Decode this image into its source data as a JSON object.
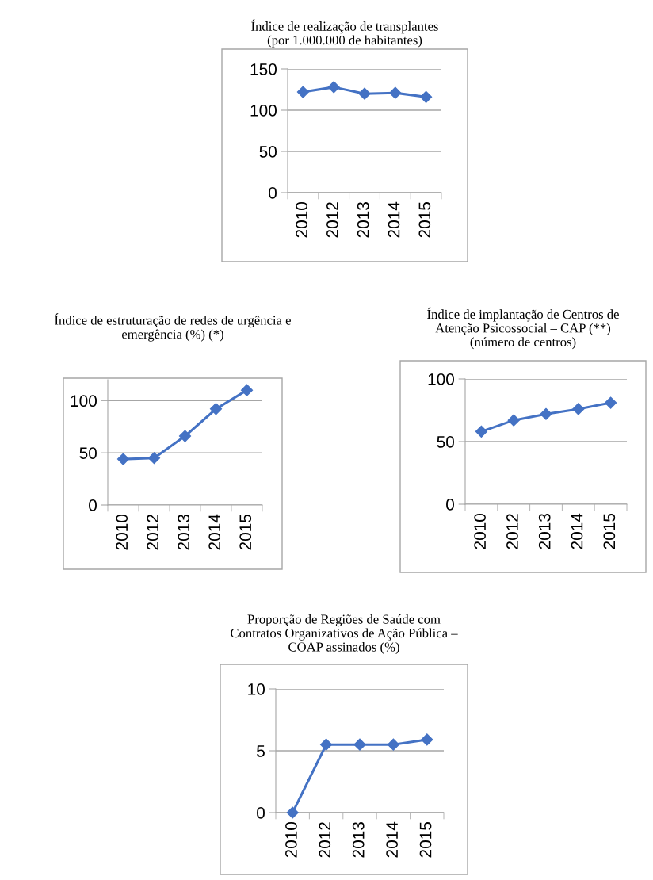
{
  "chart_data": [
    {
      "type": "line",
      "title": "Índice de realização de transplantes\n(por 1.000.000 de habitantes)",
      "categories": [
        "2010",
        "2012",
        "2013",
        "2014",
        "2015"
      ],
      "series": [
        {
          "color": "#4472c4",
          "values": [
            122,
            128,
            120,
            121,
            116
          ]
        }
      ],
      "ylim": [
        0,
        150
      ],
      "yticks": [
        0,
        50,
        100,
        150
      ],
      "grid": "y",
      "marker": "diamond",
      "line_style": "solid"
    },
    {
      "type": "line",
      "title": "Índice de estruturação de redes de urgência e\nemergência (%) (*)",
      "categories": [
        "2010",
        "2012",
        "2013",
        "2014",
        "2015"
      ],
      "series": [
        {
          "color": "#4472c4",
          "values": [
            44,
            45,
            66,
            92,
            110
          ]
        }
      ],
      "ylim": [
        0,
        120
      ],
      "yticks": [
        0,
        50,
        100
      ],
      "grid": "y",
      "marker": "diamond",
      "line_style": "solid"
    },
    {
      "type": "line",
      "title": "Índice de implantação de Centros de\nAtenção Psicossocial – CAP (**)\n(número de centros)",
      "categories": [
        "2010",
        "2012",
        "2013",
        "2014",
        "2015"
      ],
      "series": [
        {
          "color": "#4472c4",
          "values": [
            58,
            67,
            72,
            76,
            81
          ]
        }
      ],
      "ylim": [
        0,
        100
      ],
      "yticks": [
        0,
        50,
        100
      ],
      "grid": "y",
      "marker": "diamond",
      "line_style": "solid"
    },
    {
      "type": "line",
      "title": "Proporção de Regiões de Saúde com\nContratos Organizativos de Ação Pública –\nCOAP assinados (%)",
      "categories": [
        "2010",
        "2012",
        "2013",
        "2014",
        "2015"
      ],
      "series": [
        {
          "color": "#4472c4",
          "values": [
            0,
            5.5,
            5.5,
            5.5,
            5.9
          ]
        }
      ],
      "ylim": [
        0,
        10
      ],
      "yticks": [
        0,
        5,
        10
      ],
      "grid": "y",
      "marker": "diamond",
      "line_style": "solid"
    }
  ]
}
